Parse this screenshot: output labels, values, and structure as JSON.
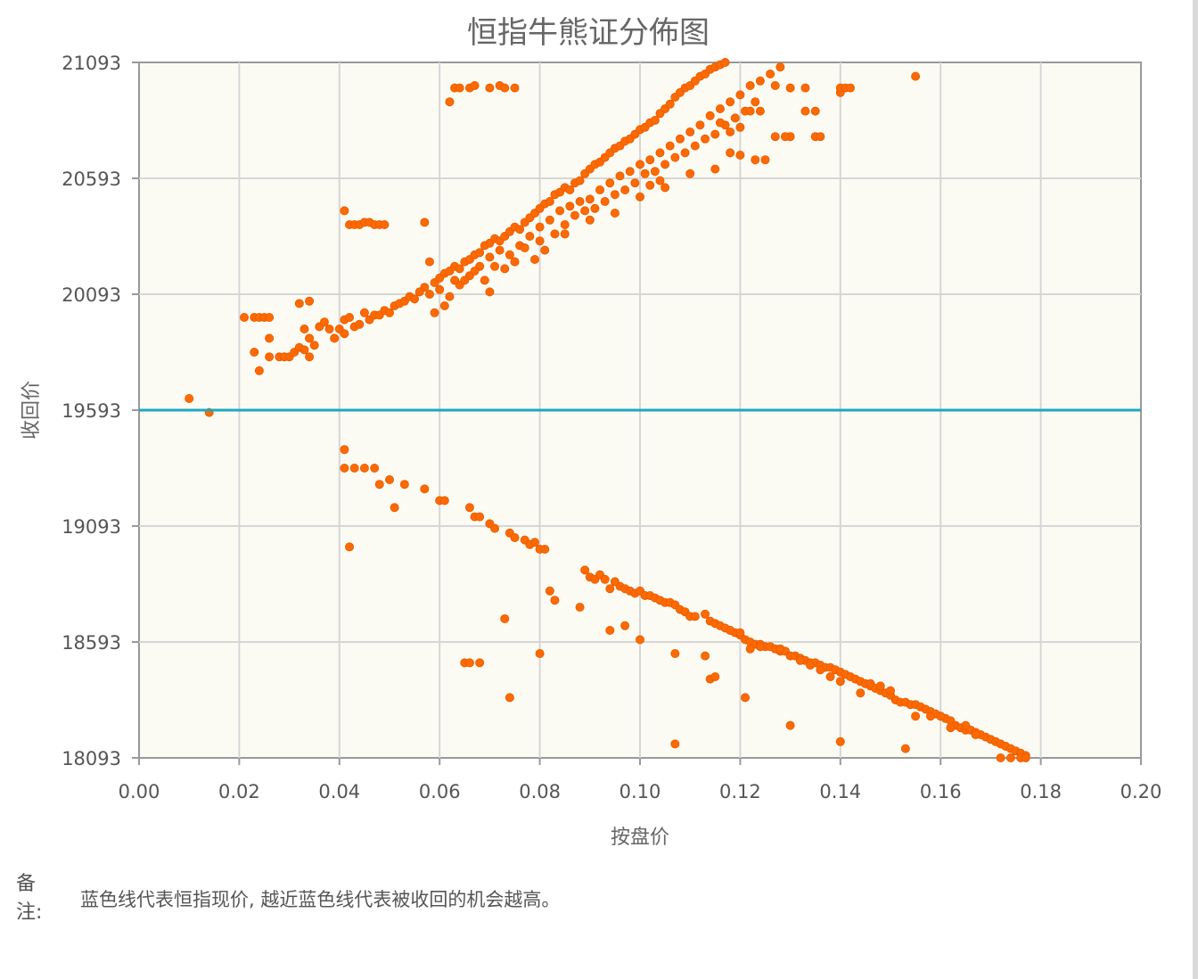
{
  "chart_data": {
    "type": "scatter",
    "title": "恒指牛熊证分佈图",
    "xlabel": "按盘价",
    "ylabel": "收回价",
    "xlim": [
      0,
      0.2
    ],
    "ylim": [
      18093,
      21093
    ],
    "xticks": [
      "0.00",
      "0.02",
      "0.04",
      "0.06",
      "0.08",
      "0.10",
      "0.12",
      "0.14",
      "0.16",
      "0.18",
      "0.20"
    ],
    "yticks": [
      "18093",
      "18593",
      "19093",
      "19593",
      "20093",
      "20593",
      "21093"
    ],
    "grid": true,
    "reference_line": {
      "y": 19593,
      "color": "#1ea7c4"
    },
    "point_color": "#ff6a00",
    "plot_background": "#fcfbf3",
    "bull_points": [
      [
        0.021,
        19993
      ],
      [
        0.023,
        19993
      ],
      [
        0.024,
        19993
      ],
      [
        0.025,
        19993
      ],
      [
        0.026,
        19993
      ],
      [
        0.023,
        19843
      ],
      [
        0.024,
        19763
      ],
      [
        0.026,
        19903
      ],
      [
        0.026,
        19823
      ],
      [
        0.028,
        19823
      ],
      [
        0.029,
        19823
      ],
      [
        0.03,
        19823
      ],
      [
        0.031,
        19843
      ],
      [
        0.032,
        19863
      ],
      [
        0.033,
        19853
      ],
      [
        0.033,
        19943
      ],
      [
        0.034,
        19903
      ],
      [
        0.034,
        19823
      ],
      [
        0.035,
        19873
      ],
      [
        0.036,
        19953
      ],
      [
        0.032,
        20053
      ],
      [
        0.034,
        20063
      ],
      [
        0.037,
        19973
      ],
      [
        0.038,
        19943
      ],
      [
        0.039,
        19903
      ],
      [
        0.04,
        19943
      ],
      [
        0.041,
        19923
      ],
      [
        0.041,
        19983
      ],
      [
        0.042,
        19993
      ],
      [
        0.043,
        19953
      ],
      [
        0.044,
        19963
      ],
      [
        0.045,
        20013
      ],
      [
        0.046,
        19983
      ],
      [
        0.047,
        20003
      ],
      [
        0.048,
        20003
      ],
      [
        0.049,
        20023
      ],
      [
        0.05,
        20013
      ],
      [
        0.051,
        20043
      ],
      [
        0.052,
        20053
      ],
      [
        0.053,
        20063
      ],
      [
        0.054,
        20083
      ],
      [
        0.055,
        20073
      ],
      [
        0.056,
        20103
      ],
      [
        0.057,
        20123
      ],
      [
        0.058,
        20093
      ],
      [
        0.059,
        20143
      ],
      [
        0.06,
        20163
      ],
      [
        0.061,
        20183
      ],
      [
        0.062,
        20193
      ],
      [
        0.063,
        20213
      ],
      [
        0.064,
        20203
      ],
      [
        0.065,
        20233
      ],
      [
        0.066,
        20243
      ],
      [
        0.067,
        20263
      ],
      [
        0.068,
        20273
      ],
      [
        0.069,
        20303
      ],
      [
        0.07,
        20313
      ],
      [
        0.071,
        20333
      ],
      [
        0.072,
        20323
      ],
      [
        0.073,
        20343
      ],
      [
        0.074,
        20363
      ],
      [
        0.075,
        20383
      ],
      [
        0.076,
        20373
      ],
      [
        0.077,
        20403
      ],
      [
        0.078,
        20423
      ],
      [
        0.079,
        20443
      ],
      [
        0.08,
        20463
      ],
      [
        0.081,
        20483
      ],
      [
        0.082,
        20493
      ],
      [
        0.083,
        20523
      ],
      [
        0.084,
        20533
      ],
      [
        0.085,
        20553
      ],
      [
        0.086,
        20543
      ],
      [
        0.087,
        20573
      ],
      [
        0.088,
        20583
      ],
      [
        0.089,
        20613
      ],
      [
        0.09,
        20633
      ],
      [
        0.091,
        20653
      ],
      [
        0.092,
        20663
      ],
      [
        0.093,
        20683
      ],
      [
        0.094,
        20703
      ],
      [
        0.095,
        20723
      ],
      [
        0.096,
        20733
      ],
      [
        0.097,
        20753
      ],
      [
        0.098,
        20763
      ],
      [
        0.099,
        20783
      ],
      [
        0.1,
        20803
      ],
      [
        0.101,
        20813
      ],
      [
        0.102,
        20833
      ],
      [
        0.103,
        20843
      ],
      [
        0.104,
        20873
      ],
      [
        0.105,
        20893
      ],
      [
        0.106,
        20913
      ],
      [
        0.107,
        20943
      ],
      [
        0.108,
        20963
      ],
      [
        0.109,
        20983
      ],
      [
        0.11,
        20993
      ],
      [
        0.111,
        21013
      ],
      [
        0.112,
        21033
      ],
      [
        0.113,
        21043
      ],
      [
        0.114,
        21063
      ],
      [
        0.115,
        21073
      ],
      [
        0.116,
        21083
      ],
      [
        0.117,
        21093
      ],
      [
        0.058,
        20233
      ],
      [
        0.06,
        20113
      ],
      [
        0.062,
        20083
      ],
      [
        0.064,
        20133
      ],
      [
        0.066,
        20173
      ],
      [
        0.068,
        20213
      ],
      [
        0.07,
        20253
      ],
      [
        0.072,
        20283
      ],
      [
        0.074,
        20263
      ],
      [
        0.076,
        20303
      ],
      [
        0.078,
        20343
      ],
      [
        0.08,
        20383
      ],
      [
        0.082,
        20413
      ],
      [
        0.084,
        20453
      ],
      [
        0.086,
        20473
      ],
      [
        0.088,
        20493
      ],
      [
        0.09,
        20503
      ],
      [
        0.092,
        20543
      ],
      [
        0.094,
        20573
      ],
      [
        0.096,
        20603
      ],
      [
        0.098,
        20623
      ],
      [
        0.1,
        20653
      ],
      [
        0.102,
        20673
      ],
      [
        0.104,
        20703
      ],
      [
        0.106,
        20733
      ],
      [
        0.108,
        20763
      ],
      [
        0.11,
        20793
      ],
      [
        0.112,
        20823
      ],
      [
        0.114,
        20863
      ],
      [
        0.116,
        20893
      ],
      [
        0.118,
        20923
      ],
      [
        0.12,
        20953
      ],
      [
        0.122,
        20993
      ],
      [
        0.124,
        21013
      ],
      [
        0.126,
        21043
      ],
      [
        0.128,
        21073
      ],
      [
        0.061,
        20043
      ],
      [
        0.063,
        20153
      ],
      [
        0.065,
        20153
      ],
      [
        0.067,
        20193
      ],
      [
        0.069,
        20153
      ],
      [
        0.071,
        20213
      ],
      [
        0.073,
        20203
      ],
      [
        0.075,
        20233
      ],
      [
        0.077,
        20293
      ],
      [
        0.079,
        20243
      ],
      [
        0.081,
        20283
      ],
      [
        0.083,
        20353
      ],
      [
        0.085,
        20393
      ],
      [
        0.087,
        20433
      ],
      [
        0.089,
        20453
      ],
      [
        0.091,
        20463
      ],
      [
        0.093,
        20493
      ],
      [
        0.095,
        20523
      ],
      [
        0.097,
        20543
      ],
      [
        0.099,
        20573
      ],
      [
        0.101,
        20613
      ],
      [
        0.103,
        20623
      ],
      [
        0.105,
        20653
      ],
      [
        0.107,
        20683
      ],
      [
        0.109,
        20703
      ],
      [
        0.111,
        20733
      ],
      [
        0.113,
        20763
      ],
      [
        0.115,
        20783
      ],
      [
        0.117,
        20823
      ],
      [
        0.119,
        20853
      ],
      [
        0.121,
        20883
      ],
      [
        0.123,
        20923
      ],
      [
        0.059,
        20013
      ],
      [
        0.07,
        20103
      ],
      [
        0.075,
        20233
      ],
      [
        0.08,
        20323
      ],
      [
        0.085,
        20353
      ],
      [
        0.09,
        20413
      ],
      [
        0.095,
        20443
      ],
      [
        0.1,
        20513
      ],
      [
        0.105,
        20553
      ],
      [
        0.11,
        20613
      ],
      [
        0.115,
        20633
      ],
      [
        0.12,
        20693
      ],
      [
        0.125,
        20673
      ],
      [
        0.13,
        20773
      ],
      [
        0.135,
        20773
      ],
      [
        0.14,
        20963
      ],
      [
        0.041,
        20453
      ],
      [
        0.042,
        20393
      ],
      [
        0.043,
        20393
      ],
      [
        0.044,
        20393
      ],
      [
        0.045,
        20403
      ],
      [
        0.046,
        20403
      ],
      [
        0.047,
        20393
      ],
      [
        0.048,
        20393
      ],
      [
        0.049,
        20393
      ],
      [
        0.057,
        20403
      ],
      [
        0.062,
        20923
      ],
      [
        0.063,
        20983
      ],
      [
        0.064,
        20983
      ],
      [
        0.066,
        20983
      ],
      [
        0.067,
        20993
      ],
      [
        0.07,
        20983
      ],
      [
        0.072,
        20993
      ],
      [
        0.073,
        20983
      ],
      [
        0.075,
        20983
      ],
      [
        0.127,
        20993
      ],
      [
        0.13,
        20983
      ],
      [
        0.133,
        20983
      ],
      [
        0.14,
        20983
      ],
      [
        0.141,
        20983
      ],
      [
        0.142,
        20983
      ],
      [
        0.155,
        21033
      ],
      [
        0.133,
        20883
      ],
      [
        0.135,
        20883
      ],
      [
        0.136,
        20773
      ],
      [
        0.127,
        20773
      ],
      [
        0.129,
        20773
      ],
      [
        0.118,
        20793
      ],
      [
        0.116,
        20833
      ],
      [
        0.12,
        20813
      ],
      [
        0.122,
        20883
      ],
      [
        0.124,
        20883
      ],
      [
        0.118,
        20703
      ],
      [
        0.123,
        20673
      ],
      [
        0.102,
        20563
      ],
      [
        0.104,
        20583
      ]
    ],
    "bear_points": [
      [
        0.01,
        19643
      ],
      [
        0.014,
        19583
      ],
      [
        0.041,
        19423
      ],
      [
        0.041,
        19343
      ],
      [
        0.043,
        19343
      ],
      [
        0.045,
        19343
      ],
      [
        0.047,
        19343
      ],
      [
        0.048,
        19273
      ],
      [
        0.05,
        19293
      ],
      [
        0.051,
        19173
      ],
      [
        0.053,
        19273
      ],
      [
        0.057,
        19253
      ],
      [
        0.06,
        19203
      ],
      [
        0.061,
        19203
      ],
      [
        0.066,
        19173
      ],
      [
        0.067,
        19133
      ],
      [
        0.068,
        19133
      ],
      [
        0.07,
        19103
      ],
      [
        0.071,
        19083
      ],
      [
        0.074,
        19063
      ],
      [
        0.075,
        19043
      ],
      [
        0.077,
        19033
      ],
      [
        0.078,
        19013
      ],
      [
        0.079,
        19023
      ],
      [
        0.08,
        18993
      ],
      [
        0.081,
        18993
      ],
      [
        0.082,
        18813
      ],
      [
        0.083,
        18773
      ],
      [
        0.089,
        18903
      ],
      [
        0.09,
        18873
      ],
      [
        0.091,
        18863
      ],
      [
        0.092,
        18883
      ],
      [
        0.093,
        18863
      ],
      [
        0.094,
        18823
      ],
      [
        0.095,
        18853
      ],
      [
        0.096,
        18833
      ],
      [
        0.097,
        18823
      ],
      [
        0.098,
        18813
      ],
      [
        0.099,
        18803
      ],
      [
        0.1,
        18813
      ],
      [
        0.101,
        18793
      ],
      [
        0.102,
        18793
      ],
      [
        0.103,
        18783
      ],
      [
        0.104,
        18773
      ],
      [
        0.105,
        18763
      ],
      [
        0.106,
        18763
      ],
      [
        0.107,
        18753
      ],
      [
        0.108,
        18733
      ],
      [
        0.109,
        18723
      ],
      [
        0.11,
        18703
      ],
      [
        0.111,
        18703
      ],
      [
        0.113,
        18713
      ],
      [
        0.114,
        18683
      ],
      [
        0.115,
        18673
      ],
      [
        0.116,
        18663
      ],
      [
        0.117,
        18653
      ],
      [
        0.118,
        18643
      ],
      [
        0.119,
        18633
      ],
      [
        0.12,
        18623
      ],
      [
        0.121,
        18603
      ],
      [
        0.122,
        18593
      ],
      [
        0.123,
        18583
      ],
      [
        0.124,
        18583
      ],
      [
        0.125,
        18573
      ],
      [
        0.126,
        18573
      ],
      [
        0.127,
        18563
      ],
      [
        0.128,
        18553
      ],
      [
        0.129,
        18553
      ],
      [
        0.13,
        18533
      ],
      [
        0.131,
        18533
      ],
      [
        0.132,
        18523
      ],
      [
        0.133,
        18513
      ],
      [
        0.134,
        18503
      ],
      [
        0.135,
        18503
      ],
      [
        0.136,
        18493
      ],
      [
        0.137,
        18483
      ],
      [
        0.138,
        18483
      ],
      [
        0.139,
        18473
      ],
      [
        0.14,
        18463
      ],
      [
        0.141,
        18453
      ],
      [
        0.142,
        18443
      ],
      [
        0.143,
        18433
      ],
      [
        0.144,
        18423
      ],
      [
        0.145,
        18413
      ],
      [
        0.146,
        18403
      ],
      [
        0.147,
        18393
      ],
      [
        0.148,
        18383
      ],
      [
        0.149,
        18373
      ],
      [
        0.15,
        18363
      ],
      [
        0.151,
        18343
      ],
      [
        0.152,
        18333
      ],
      [
        0.153,
        18333
      ],
      [
        0.154,
        18323
      ],
      [
        0.155,
        18323
      ],
      [
        0.156,
        18313
      ],
      [
        0.157,
        18303
      ],
      [
        0.158,
        18293
      ],
      [
        0.159,
        18283
      ],
      [
        0.16,
        18273
      ],
      [
        0.161,
        18263
      ],
      [
        0.162,
        18253
      ],
      [
        0.163,
        18233
      ],
      [
        0.164,
        18223
      ],
      [
        0.165,
        18213
      ],
      [
        0.166,
        18213
      ],
      [
        0.167,
        18203
      ],
      [
        0.168,
        18193
      ],
      [
        0.169,
        18183
      ],
      [
        0.17,
        18173
      ],
      [
        0.171,
        18163
      ],
      [
        0.172,
        18153
      ],
      [
        0.173,
        18143
      ],
      [
        0.174,
        18133
      ],
      [
        0.175,
        18123
      ],
      [
        0.176,
        18113
      ],
      [
        0.177,
        18103
      ],
      [
        0.172,
        18093
      ],
      [
        0.174,
        18093
      ],
      [
        0.176,
        18093
      ],
      [
        0.177,
        18093
      ],
      [
        0.042,
        19003
      ],
      [
        0.065,
        18503
      ],
      [
        0.066,
        18503
      ],
      [
        0.068,
        18503
      ],
      [
        0.073,
        18693
      ],
      [
        0.074,
        18353
      ],
      [
        0.08,
        18543
      ],
      [
        0.088,
        18743
      ],
      [
        0.094,
        18643
      ],
      [
        0.097,
        18663
      ],
      [
        0.1,
        18603
      ],
      [
        0.107,
        18543
      ],
      [
        0.107,
        18153
      ],
      [
        0.113,
        18533
      ],
      [
        0.114,
        18433
      ],
      [
        0.115,
        18443
      ],
      [
        0.121,
        18353
      ],
      [
        0.13,
        18233
      ],
      [
        0.14,
        18163
      ],
      [
        0.153,
        18133
      ],
      [
        0.155,
        18273
      ],
      [
        0.162,
        18223
      ],
      [
        0.165,
        18233
      ],
      [
        0.167,
        18193
      ],
      [
        0.16,
        18273
      ],
      [
        0.158,
        18273
      ],
      [
        0.15,
        18383
      ],
      [
        0.148,
        18403
      ],
      [
        0.146,
        18413
      ],
      [
        0.144,
        18373
      ],
      [
        0.14,
        18423
      ],
      [
        0.138,
        18443
      ],
      [
        0.136,
        18473
      ],
      [
        0.134,
        18493
      ],
      [
        0.132,
        18513
      ],
      [
        0.128,
        18563
      ],
      [
        0.124,
        18573
      ],
      [
        0.122,
        18563
      ],
      [
        0.12,
        18633
      ],
      [
        0.118,
        18643
      ]
    ]
  },
  "note": {
    "label": "备注:",
    "text": "蓝色线代表恒指现价, 越近蓝色线代表被收回的机会越高。"
  }
}
